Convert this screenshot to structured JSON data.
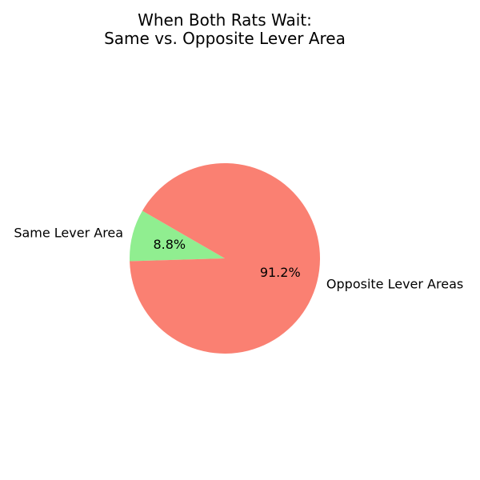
{
  "chart_data": {
    "type": "pie",
    "title": [
      "When Both Rats Wait:",
      "Same vs. Opposite Lever Area"
    ],
    "slices": [
      {
        "label": "Same Lever Area",
        "value": 8.8,
        "display": "8.8%",
        "color": "#90ee90"
      },
      {
        "label": "Opposite Lever Areas",
        "value": 91.2,
        "display": "91.2%",
        "color": "#fa8072"
      }
    ],
    "start_angle_deg": 150,
    "direction": "counterclockwise"
  }
}
